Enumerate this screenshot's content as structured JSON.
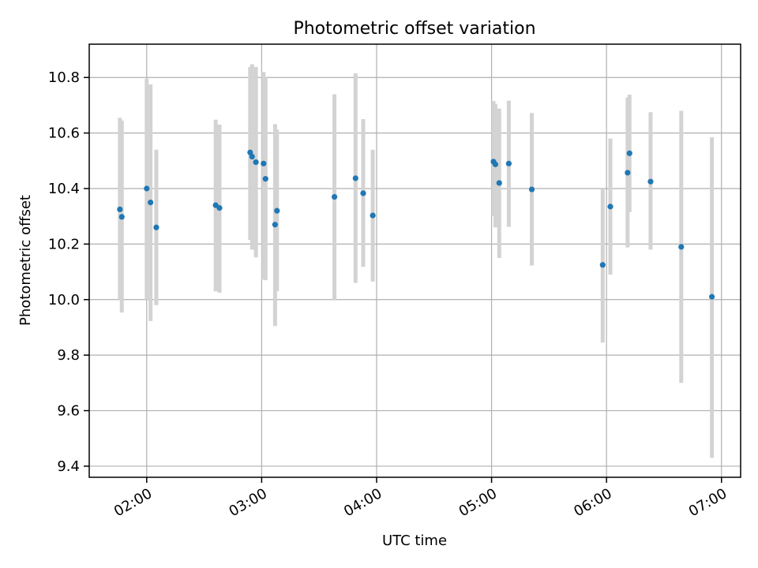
{
  "chart_data": {
    "type": "scatter",
    "title": "Photometric offset variation",
    "xlabel": "UTC time",
    "ylabel": "Photometric offset",
    "xlim": [
      "01:30",
      "07:10"
    ],
    "ylim": [
      9.36,
      10.92
    ],
    "x_ticks": [
      "02:00",
      "03:00",
      "04:00",
      "05:00",
      "06:00",
      "07:00"
    ],
    "y_ticks": [
      9.4,
      9.6,
      9.8,
      10.0,
      10.2,
      10.4,
      10.6,
      10.8
    ],
    "y_tick_labels": [
      "9.4",
      "9.6",
      "9.8",
      "10.0",
      "10.2",
      "10.4",
      "10.6",
      "10.8"
    ],
    "grid": true,
    "series": [
      {
        "color": "#1f77b4",
        "errorbar_color": "#d3d3d3",
        "points": [
          {
            "x": "01:46",
            "y": 10.325,
            "lo": 10.0,
            "hi": 10.655
          },
          {
            "x": "01:47",
            "y": 10.298,
            "lo": 9.953,
            "hi": 10.645
          },
          {
            "x": "02:00",
            "y": 10.4,
            "lo": 10.0,
            "hi": 10.795
          },
          {
            "x": "02:02",
            "y": 10.35,
            "lo": 9.923,
            "hi": 10.775
          },
          {
            "x": "02:05",
            "y": 10.26,
            "lo": 9.98,
            "hi": 10.54
          },
          {
            "x": "02:36",
            "y": 10.34,
            "lo": 10.03,
            "hi": 10.648
          },
          {
            "x": "02:38",
            "y": 10.33,
            "lo": 10.025,
            "hi": 10.63
          },
          {
            "x": "02:54",
            "y": 10.53,
            "lo": 10.215,
            "hi": 10.838
          },
          {
            "x": "02:55",
            "y": 10.515,
            "lo": 10.18,
            "hi": 10.848
          },
          {
            "x": "02:57",
            "y": 10.495,
            "lo": 10.152,
            "hi": 10.838
          },
          {
            "x": "03:01",
            "y": 10.49,
            "lo": 10.072,
            "hi": 10.82
          },
          {
            "x": "03:02",
            "y": 10.435,
            "lo": 10.07,
            "hi": 10.8
          },
          {
            "x": "03:07",
            "y": 10.27,
            "lo": 9.905,
            "hi": 10.632
          },
          {
            "x": "03:08",
            "y": 10.32,
            "lo": 10.03,
            "hi": 10.612
          },
          {
            "x": "03:38",
            "y": 10.37,
            "lo": 10.0,
            "hi": 10.74
          },
          {
            "x": "03:49",
            "y": 10.437,
            "lo": 10.06,
            "hi": 10.815
          },
          {
            "x": "03:53",
            "y": 10.383,
            "lo": 10.118,
            "hi": 10.65
          },
          {
            "x": "03:58",
            "y": 10.303,
            "lo": 10.065,
            "hi": 10.54
          },
          {
            "x": "05:01",
            "y": 10.497,
            "lo": 10.3,
            "hi": 10.715
          },
          {
            "x": "05:02",
            "y": 10.487,
            "lo": 10.26,
            "hi": 10.705
          },
          {
            "x": "05:04",
            "y": 10.42,
            "lo": 10.15,
            "hi": 10.688
          },
          {
            "x": "05:09",
            "y": 10.49,
            "lo": 10.262,
            "hi": 10.717
          },
          {
            "x": "05:21",
            "y": 10.397,
            "lo": 10.123,
            "hi": 10.672
          },
          {
            "x": "05:58",
            "y": 10.125,
            "lo": 9.845,
            "hi": 10.4
          },
          {
            "x": "06:02",
            "y": 10.335,
            "lo": 10.09,
            "hi": 10.58
          },
          {
            "x": "06:11",
            "y": 10.457,
            "lo": 10.188,
            "hi": 10.728
          },
          {
            "x": "06:12",
            "y": 10.527,
            "lo": 10.315,
            "hi": 10.738
          },
          {
            "x": "06:23",
            "y": 10.425,
            "lo": 10.18,
            "hi": 10.675
          },
          {
            "x": "06:39",
            "y": 10.19,
            "lo": 9.7,
            "hi": 10.68
          },
          {
            "x": "06:55",
            "y": 10.01,
            "lo": 9.43,
            "hi": 10.585
          }
        ]
      }
    ]
  }
}
